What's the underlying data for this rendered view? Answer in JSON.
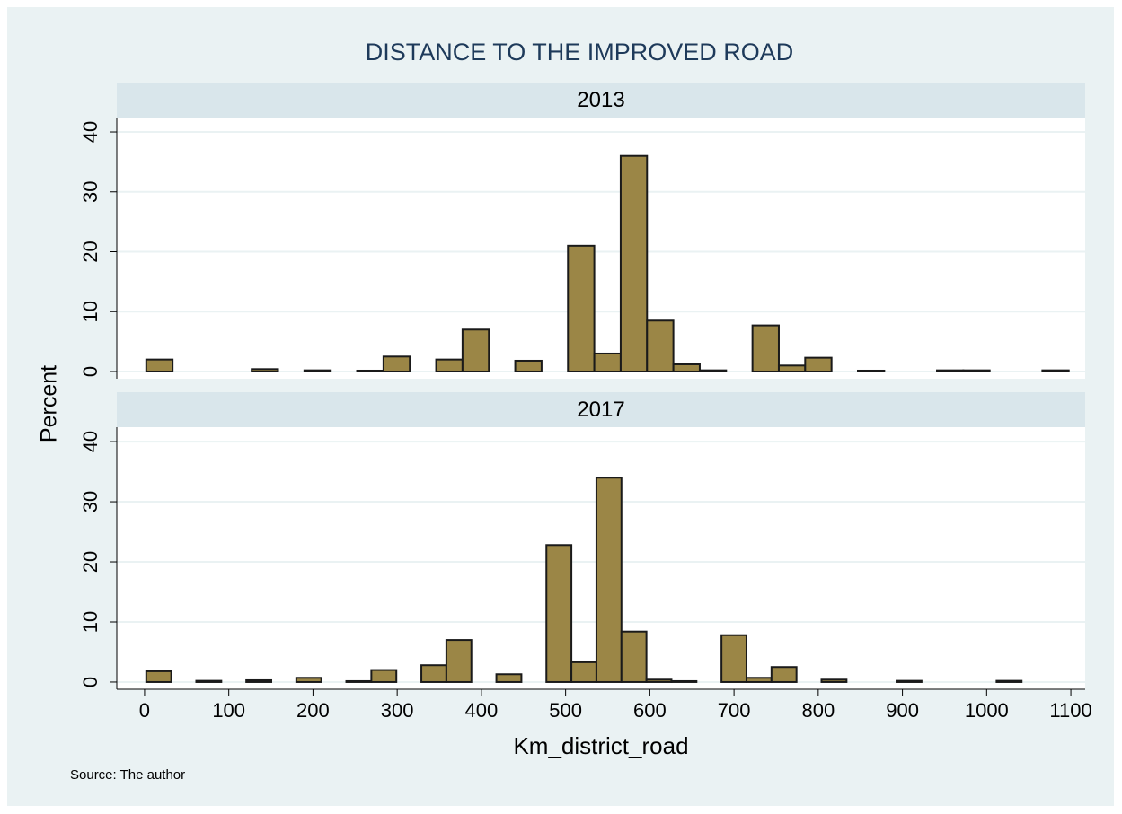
{
  "title": "DISTANCE TO THE IMPROVED ROAD",
  "y_label": "Percent",
  "source": "Source: The author",
  "chart_data": [
    {
      "type": "histogram",
      "title": "2013",
      "color": "#9b8646",
      "bins": [
        2,
        33.3,
        64.6,
        95.9,
        127.2,
        158.5,
        189.8,
        221.1,
        252.4,
        283.7,
        315,
        346.3,
        377.6,
        408.9,
        440.2,
        471.5,
        502.8,
        534.1,
        565.4,
        596.7,
        628,
        659.3,
        690.6,
        721.9,
        753.2,
        784.5,
        815.8,
        847.1,
        878.4,
        909.7,
        941,
        972.3,
        1003.6,
        1034.9,
        1066.2,
        1097.5
      ],
      "values": [
        2,
        0,
        0,
        0,
        0.4,
        0,
        0.2,
        0,
        0.15,
        2.5,
        0,
        2,
        7,
        0,
        1.8,
        0,
        21,
        3,
        36,
        8.5,
        1.2,
        0.2,
        0,
        7.7,
        1,
        2.3,
        0,
        0.15,
        0,
        0,
        0.2,
        0.2,
        0,
        0,
        0.2
      ],
      "xlim": [
        -33,
        1117
      ],
      "ylim": [
        -1.2,
        42.4
      ],
      "yticks": [
        0,
        10,
        20,
        30,
        40
      ],
      "grid": true
    },
    {
      "type": "histogram",
      "title": "2017",
      "color": "#9b8646",
      "bins": [
        2,
        31.7,
        61.4,
        91.1,
        120.8,
        150.5,
        180.2,
        209.9,
        239.6,
        269.3,
        299,
        328.7,
        358.4,
        388.1,
        417.8,
        447.5,
        477.2,
        506.9,
        536.6,
        566.3,
        596,
        625.7,
        655.4,
        685.1,
        714.8,
        744.5,
        774.2,
        803.9,
        833.6,
        863.3,
        893,
        922.7,
        952.4,
        982.1,
        1011.8,
        1041.5
      ],
      "values": [
        1.8,
        0,
        0.2,
        0,
        0.3,
        0,
        0.7,
        0,
        0.15,
        2,
        0,
        2.8,
        7,
        0,
        1.3,
        0,
        22.8,
        3.3,
        34,
        8.4,
        0.4,
        0.15,
        0,
        7.8,
        0.7,
        2.5,
        0,
        0.4,
        0,
        0,
        0.2,
        0,
        0,
        0,
        0.2
      ],
      "xlabel": "Km_district_road",
      "xlim": [
        -33,
        1117
      ],
      "xticks": [
        0,
        100,
        200,
        300,
        400,
        500,
        600,
        700,
        800,
        900,
        1000,
        1100
      ],
      "ylim": [
        -1.2,
        42.4
      ],
      "yticks": [
        0,
        10,
        20,
        30,
        40
      ],
      "grid": true
    }
  ]
}
